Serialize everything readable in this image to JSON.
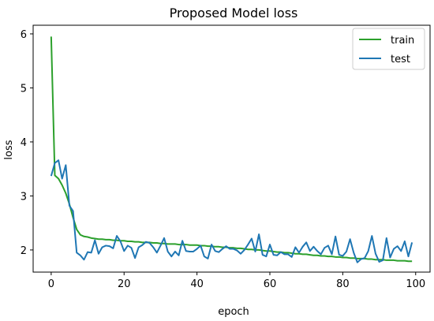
{
  "chart_data": {
    "type": "line",
    "title": "Proposed Model loss",
    "xlabel": "epoch",
    "ylabel": "loss",
    "xlim": [
      -4.95,
      103.95
    ],
    "ylim": [
      1.59,
      6.16
    ],
    "xticks": [
      0,
      20,
      40,
      60,
      80,
      100
    ],
    "yticks": [
      2,
      3,
      4,
      5,
      6
    ],
    "grid": false,
    "legend_position": "top-right",
    "x": [
      0,
      1,
      2,
      3,
      4,
      5,
      6,
      7,
      8,
      9,
      10,
      11,
      12,
      13,
      14,
      15,
      16,
      17,
      18,
      19,
      20,
      21,
      22,
      23,
      24,
      25,
      26,
      27,
      28,
      29,
      30,
      31,
      32,
      33,
      34,
      35,
      36,
      37,
      38,
      39,
      40,
      41,
      42,
      43,
      44,
      45,
      46,
      47,
      48,
      49,
      50,
      51,
      52,
      53,
      54,
      55,
      56,
      57,
      58,
      59,
      60,
      61,
      62,
      63,
      64,
      65,
      66,
      67,
      68,
      69,
      70,
      71,
      72,
      73,
      74,
      75,
      76,
      77,
      78,
      79,
      80,
      81,
      82,
      83,
      84,
      85,
      86,
      87,
      88,
      89,
      90,
      91,
      92,
      93,
      94,
      95,
      96,
      97,
      98,
      99
    ],
    "series": [
      {
        "name": "train",
        "color": "#2ca02c",
        "values": [
          5.95,
          3.38,
          3.32,
          3.2,
          3.05,
          2.85,
          2.6,
          2.38,
          2.28,
          2.25,
          2.24,
          2.22,
          2.21,
          2.2,
          2.2,
          2.19,
          2.19,
          2.18,
          2.18,
          2.17,
          2.17,
          2.16,
          2.16,
          2.15,
          2.15,
          2.14,
          2.14,
          2.14,
          2.13,
          2.13,
          2.12,
          2.12,
          2.11,
          2.11,
          2.11,
          2.1,
          2.1,
          2.1,
          2.09,
          2.09,
          2.09,
          2.08,
          2.08,
          2.07,
          2.07,
          2.06,
          2.06,
          2.05,
          2.05,
          2.04,
          2.04,
          2.03,
          2.03,
          2.02,
          2.01,
          2.01,
          2.0,
          2.0,
          1.99,
          1.98,
          1.98,
          1.97,
          1.96,
          1.96,
          1.95,
          1.95,
          1.94,
          1.93,
          1.93,
          1.92,
          1.92,
          1.91,
          1.9,
          1.9,
          1.89,
          1.89,
          1.88,
          1.88,
          1.87,
          1.87,
          1.86,
          1.86,
          1.85,
          1.85,
          1.84,
          1.84,
          1.84,
          1.83,
          1.83,
          1.82,
          1.82,
          1.82,
          1.81,
          1.81,
          1.81,
          1.8,
          1.8,
          1.8,
          1.79,
          1.79
        ]
      },
      {
        "name": "test",
        "color": "#1f77b4",
        "values": [
          3.37,
          3.61,
          3.66,
          3.32,
          3.57,
          2.82,
          2.72,
          1.95,
          1.9,
          1.82,
          1.96,
          1.95,
          2.18,
          1.93,
          2.05,
          2.08,
          2.07,
          2.03,
          2.26,
          2.16,
          1.98,
          2.08,
          2.04,
          1.85,
          2.05,
          2.09,
          2.15,
          2.13,
          2.05,
          1.95,
          2.08,
          2.22,
          1.97,
          1.88,
          1.97,
          1.9,
          2.17,
          1.98,
          1.97,
          1.97,
          2.02,
          2.08,
          1.88,
          1.84,
          2.1,
          1.98,
          1.96,
          2.02,
          2.07,
          2.02,
          2.02,
          1.99,
          1.93,
          2.0,
          2.1,
          2.21,
          1.97,
          2.29,
          1.91,
          1.88,
          2.1,
          1.91,
          1.9,
          1.96,
          1.92,
          1.92,
          1.87,
          2.05,
          1.95,
          2.06,
          2.14,
          1.98,
          2.06,
          1.98,
          1.92,
          2.04,
          2.08,
          1.92,
          2.25,
          1.91,
          1.89,
          1.97,
          2.2,
          1.95,
          1.77,
          1.83,
          1.85,
          1.98,
          2.26,
          1.93,
          1.78,
          1.81,
          2.22,
          1.86,
          2.02,
          2.07,
          1.98,
          2.16,
          1.88,
          2.14
        ]
      }
    ]
  }
}
